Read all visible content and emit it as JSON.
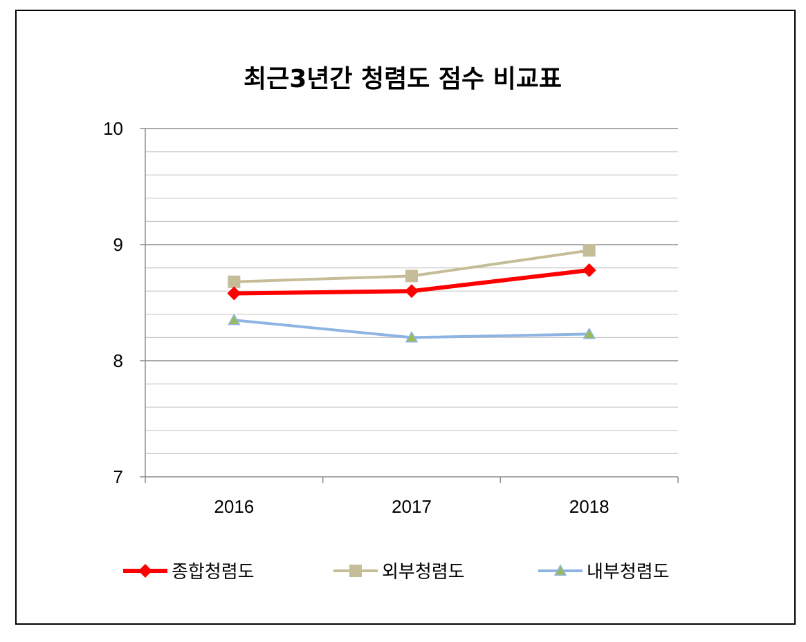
{
  "chart_data": {
    "type": "line",
    "title": "최근3년간 청렴도 점수 비교표",
    "categories": [
      "2016",
      "2017",
      "2018"
    ],
    "ylim": [
      7,
      10
    ],
    "y_ticks": [
      "7",
      "8",
      "9",
      "10"
    ],
    "minor_grid_step": 0.2,
    "grid": true,
    "legend_position": "bottom",
    "series": [
      {
        "name": "종합청렴도",
        "values": [
          8.58,
          8.6,
          8.78
        ],
        "color": "#ff0000",
        "marker": "diamond",
        "line_width": 6
      },
      {
        "name": "외부청렴도",
        "values": [
          8.68,
          8.73,
          8.95
        ],
        "color": "#c4bd97",
        "marker": "square",
        "line_width": 4
      },
      {
        "name": "내부청렴도",
        "values": [
          8.35,
          8.2,
          8.23
        ],
        "color": "#8eb4e3",
        "marker": "triangle",
        "marker_fill": "#9bbb59",
        "line_width": 4
      }
    ]
  }
}
